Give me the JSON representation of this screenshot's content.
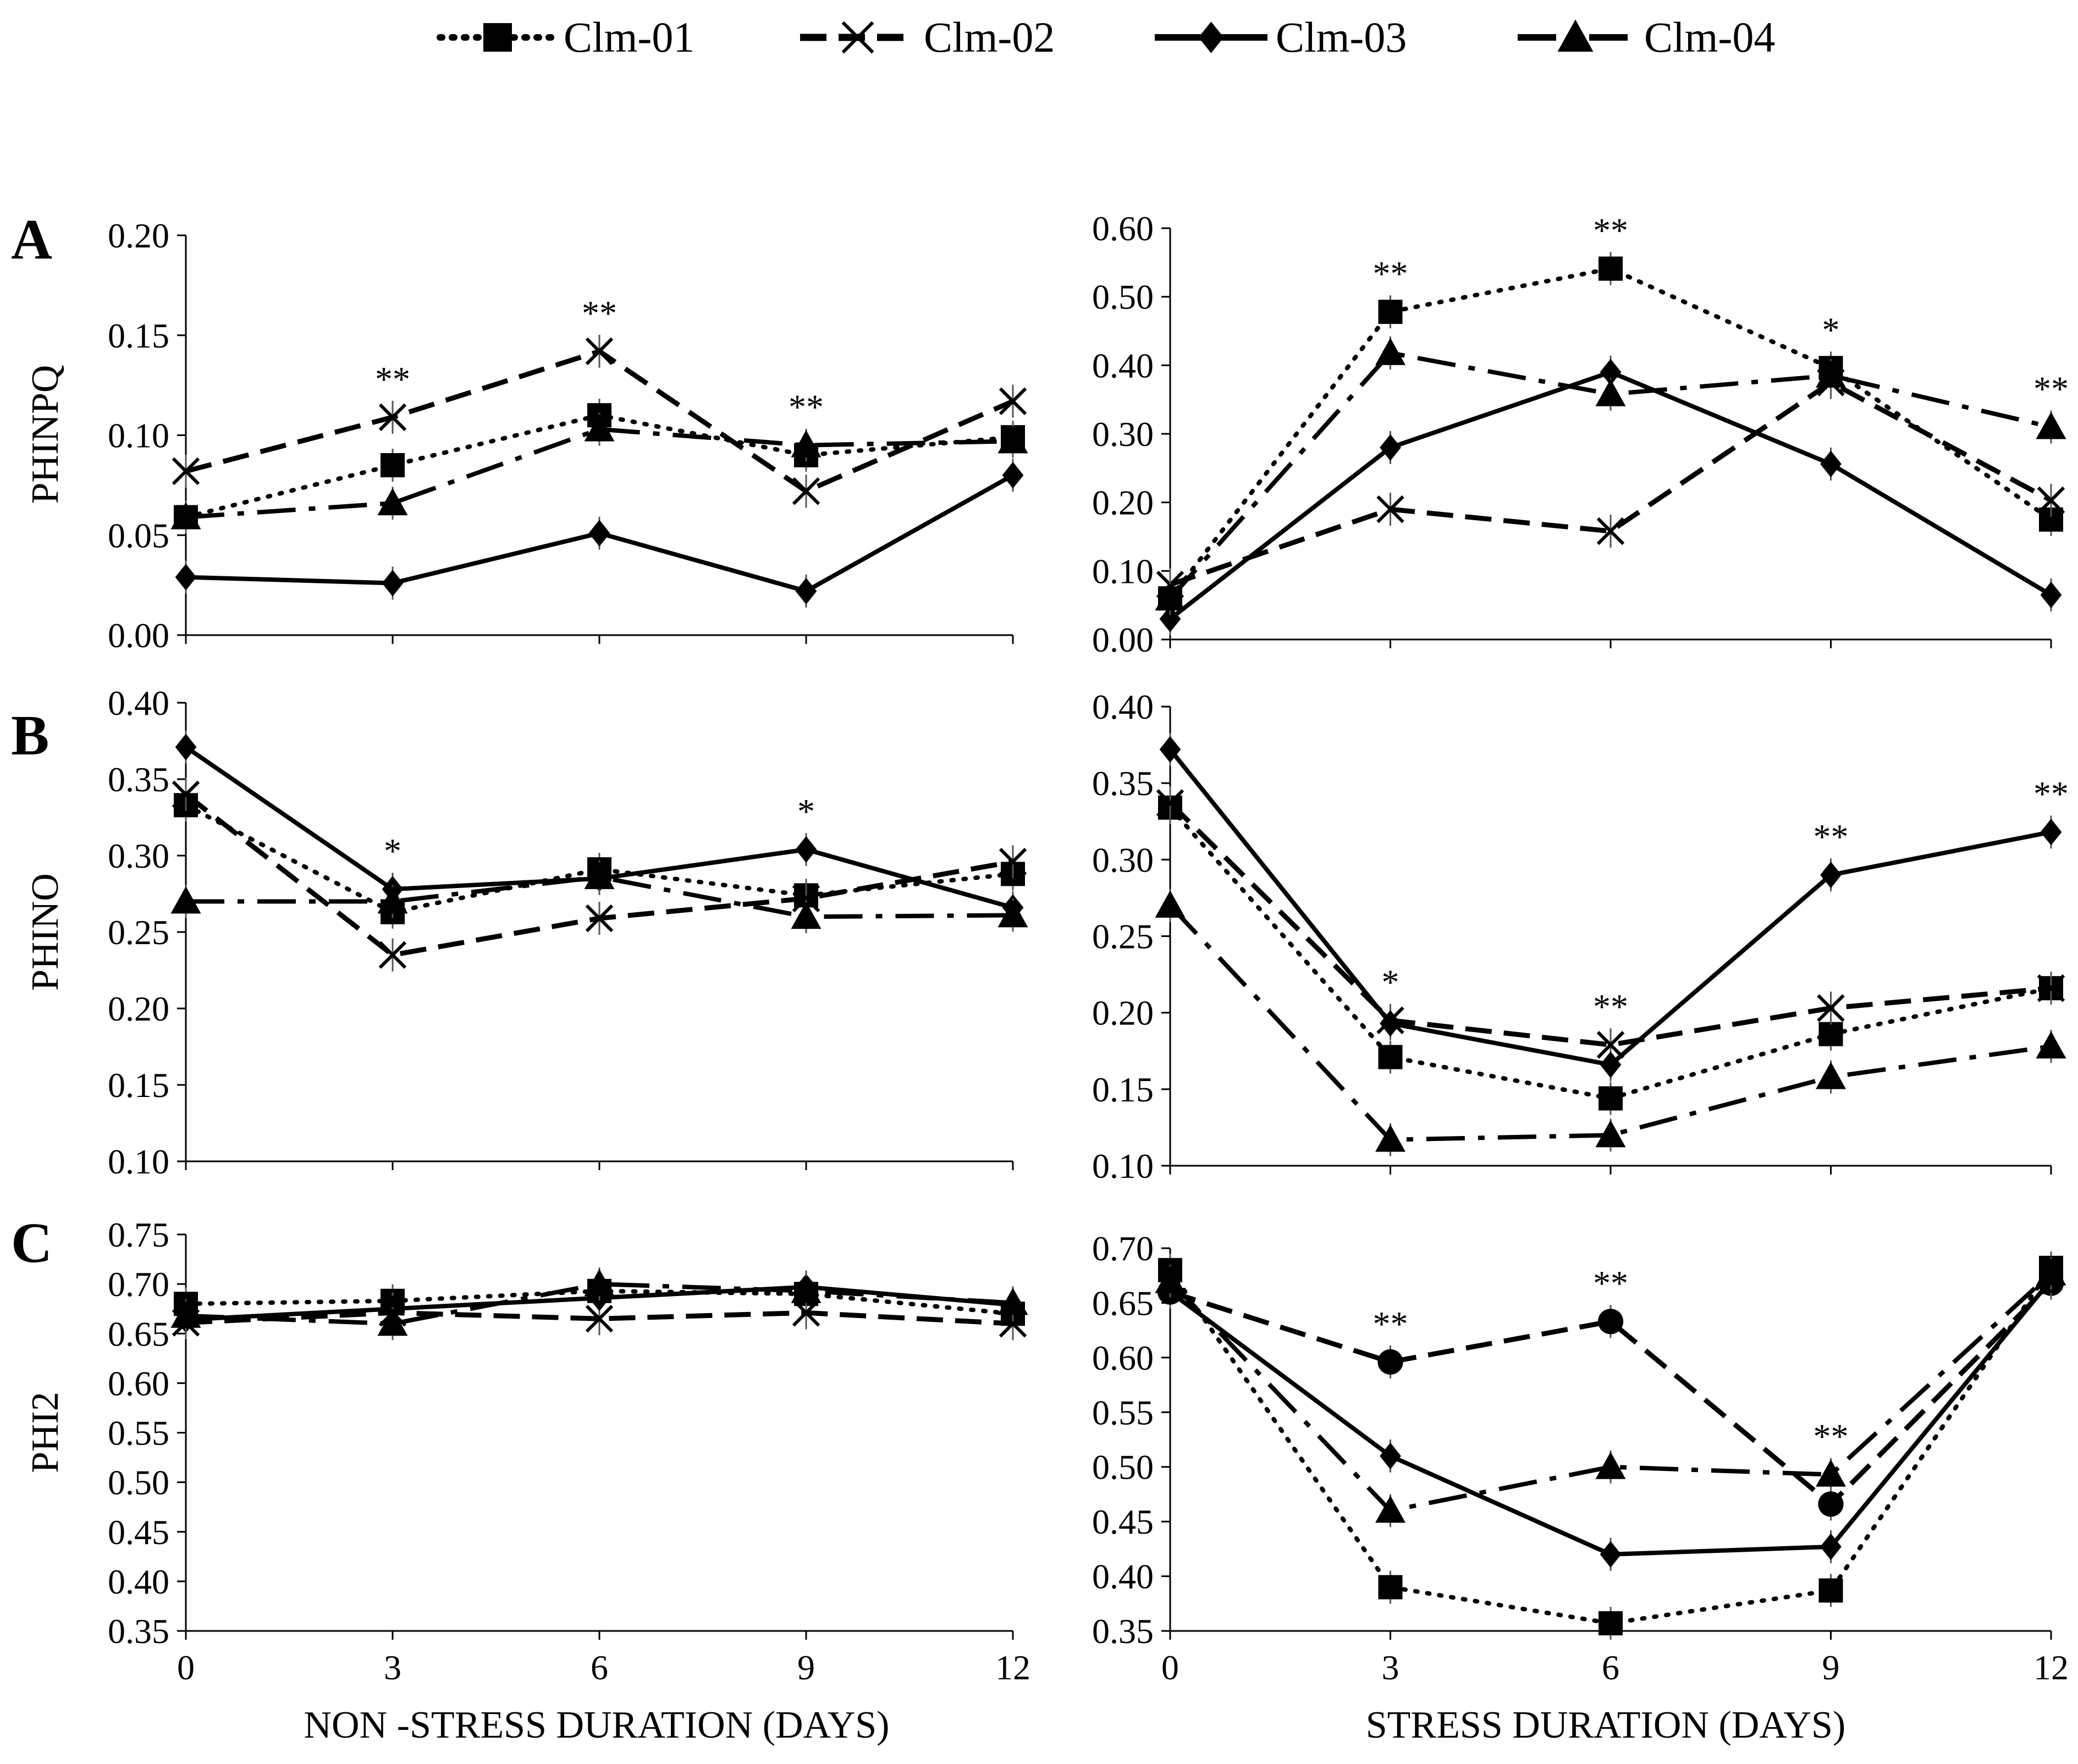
{
  "legend": {
    "entries": [
      "Clm-01",
      "Clm-02",
      "Clm-03",
      "Clm-04"
    ]
  },
  "styles": [
    {
      "dash": "dotted",
      "marker": "square",
      "width": 8
    },
    {
      "dash": "dashed",
      "marker": "x",
      "width": 9
    },
    {
      "dash": "solid",
      "marker": "diamond",
      "width": 8
    },
    {
      "dash": "dashdot",
      "marker": "triangle",
      "width": 8
    }
  ],
  "xlabels": {
    "left": "NON -STRESS DURATION (DAYS)",
    "right": "STRESS DURATION (DAYS)"
  },
  "chart_data": [
    {
      "id": "A-left",
      "panel_letter": "A",
      "type": "line",
      "x": [
        0,
        3,
        6,
        9,
        12
      ],
      "ylabel": "PHINPQ",
      "ylim": [
        0,
        0.2
      ],
      "yticks": [
        "0.00",
        "0.05",
        "0.10",
        "0.15",
        "0.20"
      ],
      "xtick_labels": [],
      "series": [
        {
          "name": "Clm-01",
          "values": [
            0.059,
            0.085,
            0.11,
            0.09,
            0.099
          ]
        },
        {
          "name": "Clm-02",
          "values": [
            0.082,
            0.109,
            0.142,
            0.072,
            0.117
          ]
        },
        {
          "name": "Clm-03",
          "values": [
            0.029,
            0.026,
            0.051,
            0.022,
            0.08
          ]
        },
        {
          "name": "Clm-04",
          "values": [
            0.059,
            0.066,
            0.103,
            0.095,
            0.097
          ]
        }
      ],
      "significance": [
        {
          "x": 3,
          "label": "**"
        },
        {
          "x": 6,
          "label": "**"
        },
        {
          "x": 9,
          "label": "**"
        }
      ]
    },
    {
      "id": "A-right",
      "panel_letter": "",
      "type": "line",
      "x": [
        0,
        3,
        6,
        9,
        12
      ],
      "ylabel": "",
      "ylim": [
        0,
        0.6
      ],
      "yticks": [
        "0.00",
        "0.10",
        "0.20",
        "0.30",
        "0.40",
        "0.50",
        "0.60"
      ],
      "xtick_labels": [],
      "series": [
        {
          "name": "Clm-01",
          "values": [
            0.06,
            0.478,
            0.541,
            0.396,
            0.175
          ]
        },
        {
          "name": "Clm-02",
          "values": [
            0.08,
            0.19,
            0.158,
            0.375,
            0.203
          ]
        },
        {
          "name": "Clm-03",
          "values": [
            0.03,
            0.28,
            0.39,
            0.256,
            0.065
          ]
        },
        {
          "name": "Clm-04",
          "values": [
            0.06,
            0.418,
            0.358,
            0.385,
            0.31
          ]
        }
      ],
      "significance": [
        {
          "x": 3,
          "label": "**"
        },
        {
          "x": 6,
          "label": "**"
        },
        {
          "x": 9,
          "label": "*"
        },
        {
          "x": 12,
          "label": "**"
        }
      ]
    },
    {
      "id": "B-left",
      "panel_letter": "B",
      "type": "line",
      "x": [
        0,
        3,
        6,
        9,
        12
      ],
      "ylabel": "PHINO",
      "ylim": [
        0.1,
        0.4
      ],
      "yticks": [
        "0.10",
        "0.15",
        "0.20",
        "0.25",
        "0.30",
        "0.35",
        "0.40"
      ],
      "xtick_labels": [],
      "series": [
        {
          "name": "Clm-01",
          "values": [
            0.333,
            0.263,
            0.291,
            0.274,
            0.288
          ]
        },
        {
          "name": "Clm-02",
          "values": [
            0.34,
            0.235,
            0.259,
            0.272,
            0.296
          ]
        },
        {
          "name": "Clm-03",
          "values": [
            0.371,
            0.278,
            0.285,
            0.304,
            0.266
          ]
        },
        {
          "name": "Clm-04",
          "values": [
            0.27,
            0.27,
            0.286,
            0.26,
            0.261
          ]
        }
      ],
      "significance": [
        {
          "x": 3,
          "label": "*"
        },
        {
          "x": 9,
          "label": "*"
        }
      ]
    },
    {
      "id": "B-right",
      "panel_letter": "",
      "type": "line",
      "x": [
        0,
        3,
        6,
        9,
        12
      ],
      "ylabel": "",
      "ylim": [
        0.1,
        0.4
      ],
      "yticks": [
        "0.10",
        "0.15",
        "0.20",
        "0.25",
        "0.30",
        "0.35",
        "0.40"
      ],
      "xtick_labels": [],
      "series": [
        {
          "name": "Clm-01",
          "values": [
            0.334,
            0.171,
            0.144,
            0.186,
            0.216
          ]
        },
        {
          "name": "Clm-02",
          "values": [
            0.337,
            0.195,
            0.179,
            0.203,
            0.216
          ]
        },
        {
          "name": "Clm-03",
          "values": [
            0.372,
            0.193,
            0.166,
            0.29,
            0.318
          ]
        },
        {
          "name": "Clm-04",
          "values": [
            0.27,
            0.117,
            0.12,
            0.158,
            0.178
          ]
        }
      ],
      "significance": [
        {
          "x": 3,
          "label": "*"
        },
        {
          "x": 6,
          "label": "**"
        },
        {
          "x": 9,
          "label": "**"
        },
        {
          "x": 12,
          "label": "**"
        }
      ]
    },
    {
      "id": "C-left",
      "panel_letter": "C",
      "type": "line",
      "x": [
        0,
        3,
        6,
        9,
        12
      ],
      "ylabel": "PHI2",
      "ylim": [
        0.35,
        0.75
      ],
      "yticks": [
        "0.35",
        "0.40",
        "0.45",
        "0.50",
        "0.55",
        "0.60",
        "0.65",
        "0.70",
        "0.75"
      ],
      "xtick_labels": [
        "0",
        "3",
        "6",
        "9",
        "12"
      ],
      "series": [
        {
          "name": "Clm-01",
          "values": [
            0.68,
            0.683,
            0.693,
            0.69,
            0.67
          ]
        },
        {
          "name": "Clm-02",
          "values": [
            0.661,
            0.671,
            0.665,
            0.671,
            0.66
          ]
        },
        {
          "name": "Clm-03",
          "values": [
            0.664,
            0.675,
            0.686,
            0.697,
            0.679
          ]
        },
        {
          "name": "Clm-04",
          "values": [
            0.668,
            0.66,
            0.7,
            0.693,
            0.681
          ]
        }
      ],
      "significance": []
    },
    {
      "id": "C-right",
      "panel_letter": "",
      "type": "line",
      "x": [
        0,
        3,
        6,
        9,
        12
      ],
      "ylabel": "",
      "ylim": [
        0.35,
        0.7
      ],
      "yticks": [
        "0.35",
        "0.40",
        "0.45",
        "0.50",
        "0.55",
        "0.60",
        "0.65",
        "0.70"
      ],
      "xtick_labels": [
        "0",
        "3",
        "6",
        "9",
        "12"
      ],
      "series": [
        {
          "name": "Clm-01",
          "values": [
            0.68,
            0.39,
            0.357,
            0.387,
            0.682
          ]
        },
        {
          "name": "Clm-02",
          "values": [
            0.66,
            0.596,
            0.633,
            0.466,
            0.668
          ]
        },
        {
          "name": "Clm-03",
          "values": [
            0.66,
            0.51,
            0.42,
            0.427,
            0.671
          ]
        },
        {
          "name": "Clm-04",
          "values": [
            0.67,
            0.46,
            0.5,
            0.493,
            0.677
          ]
        }
      ],
      "significance": [
        {
          "x": 3,
          "label": "**"
        },
        {
          "x": 6,
          "label": "**"
        },
        {
          "x": 9,
          "label": "**"
        }
      ]
    }
  ]
}
